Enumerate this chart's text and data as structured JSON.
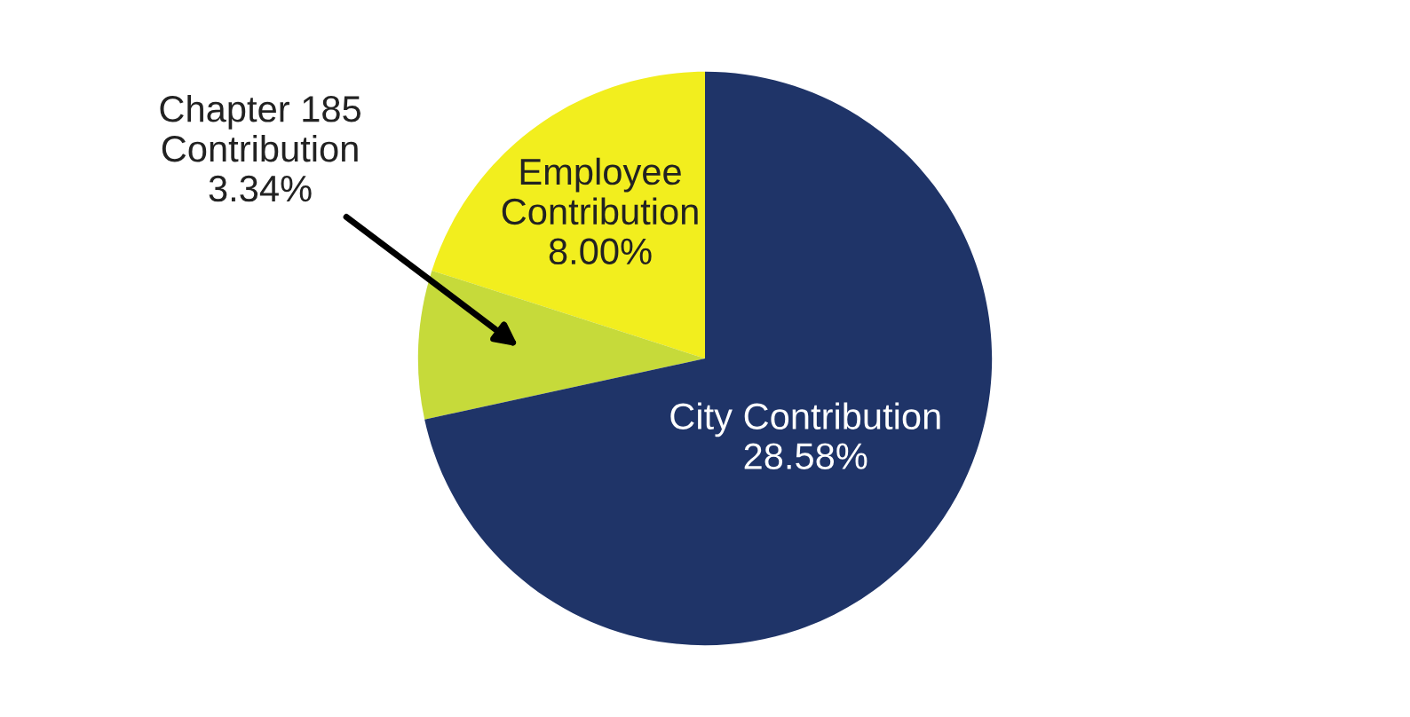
{
  "chart_data": {
    "type": "pie",
    "categories": [
      "Employee\nContribution",
      "Chapter 185\nContribution",
      "City Contribution"
    ],
    "values": [
      8.0,
      3.34,
      28.58
    ],
    "value_labels": [
      "8.00%",
      "3.34%",
      "28.58%"
    ],
    "colors": [
      "#f2ee1e",
      "#c6da3a",
      "#1f3468"
    ]
  }
}
